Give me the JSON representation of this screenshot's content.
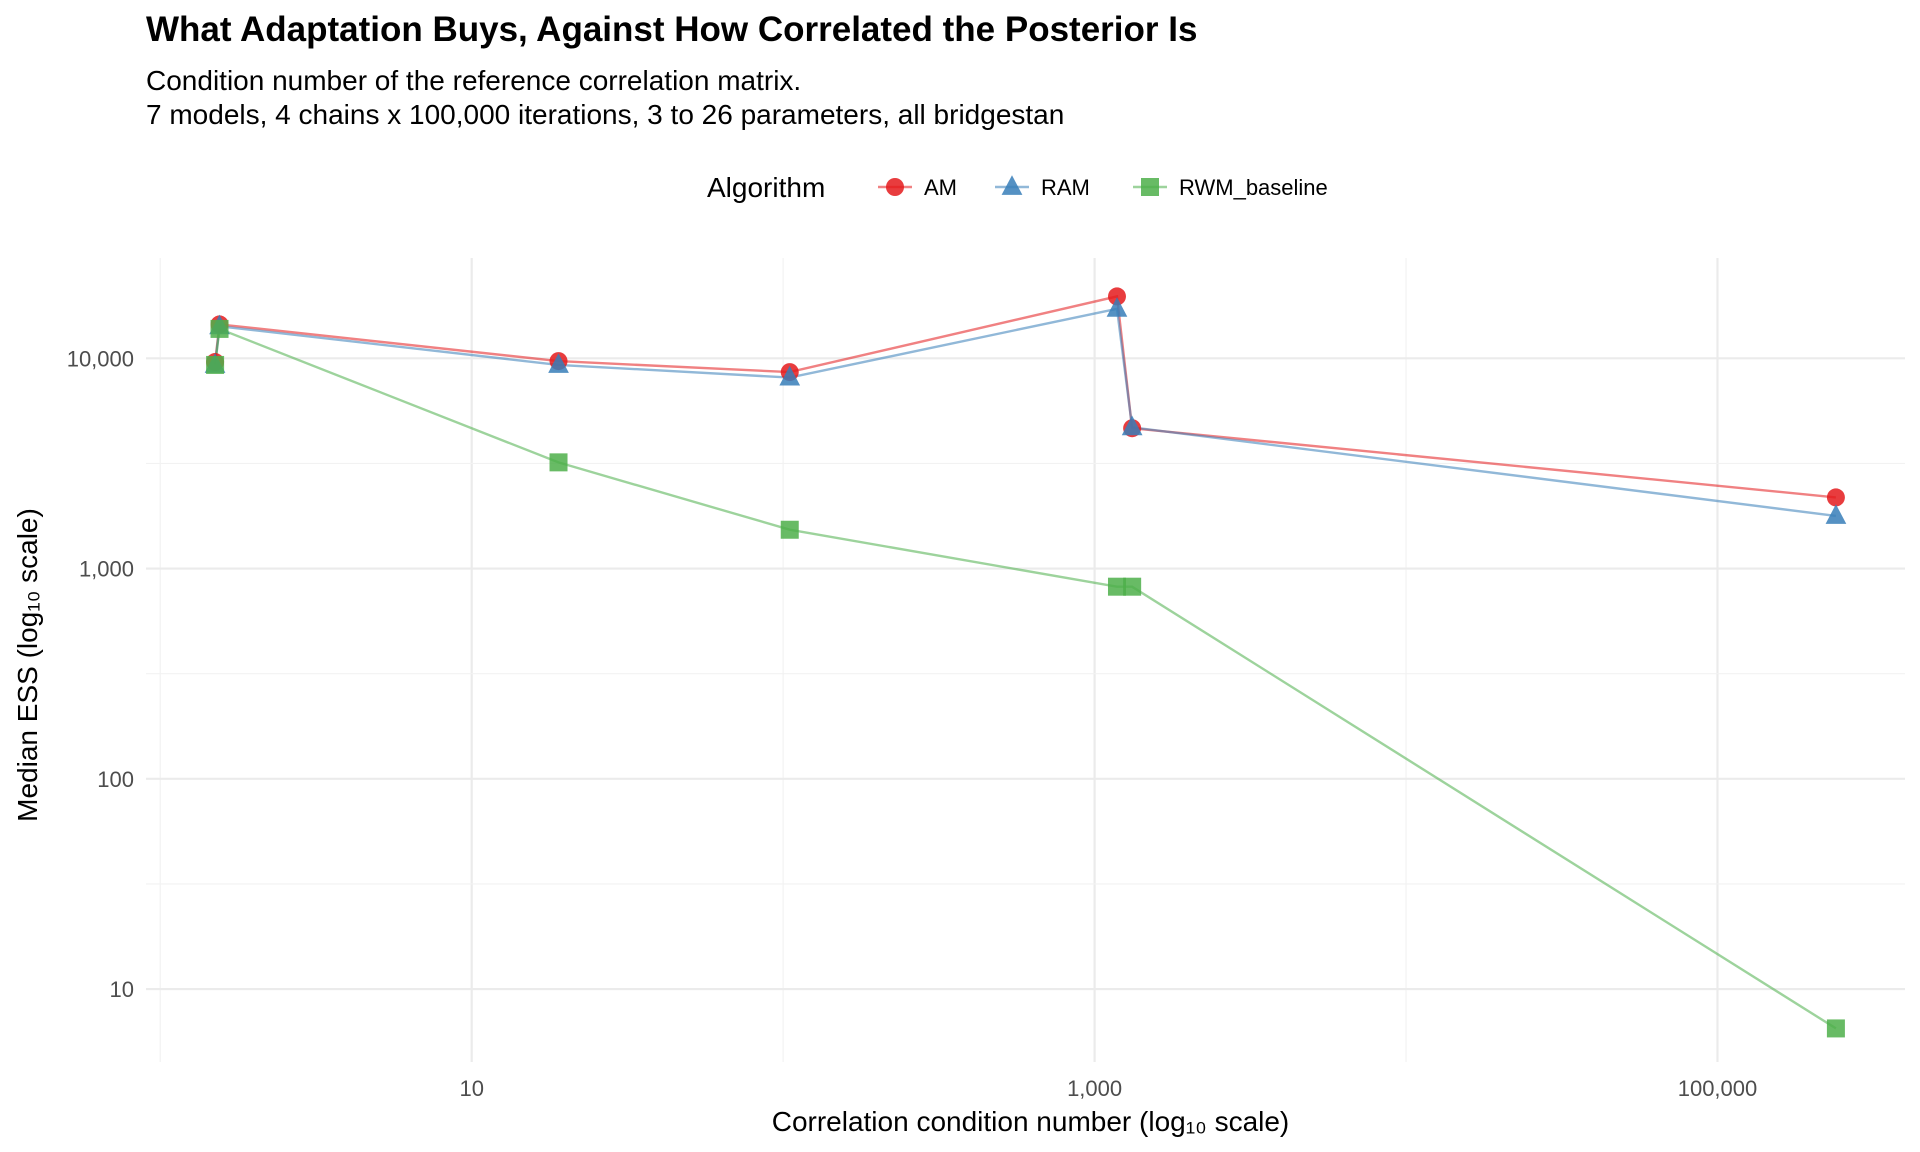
{
  "chart_data": {
    "type": "line",
    "title": "What Adaptation Buys, Against How Correlated the Posterior Is",
    "subtitle_lines": [
      "Condition number of the reference correlation matrix.",
      "7 models, 4 chains x 100,000 iterations, 3 to 26 parameters, all bridgestan"
    ],
    "xlabel": "Correlation condition number (log₁₀ scale)",
    "ylabel": "Median ESS (log₁₀ scale)",
    "x_scale": "log10",
    "y_scale": "log10",
    "xlim": [
      0.9,
      400000
    ],
    "ylim": [
      4.5,
      30000
    ],
    "x_ticks": [
      {
        "value": 10,
        "label": "10"
      },
      {
        "value": 1000,
        "label": "1,000"
      },
      {
        "value": 100000,
        "label": "100,000"
      }
    ],
    "y_ticks": [
      {
        "value": 10,
        "label": "10"
      },
      {
        "value": 100,
        "label": "100"
      },
      {
        "value": 1000,
        "label": "1,000"
      },
      {
        "value": 10000,
        "label": "10,000"
      }
    ],
    "grid": true,
    "legend": {
      "title": "Algorithm",
      "position": "top"
    },
    "series": [
      {
        "name": "AM",
        "color": "#E41A1C",
        "marker": "circle",
        "points": [
          [
            1.5,
            9600
          ],
          [
            1.55,
            14500
          ],
          [
            19,
            9700
          ],
          [
            105,
            8600
          ],
          [
            1180,
            19700
          ],
          [
            1320,
            4650
          ],
          [
            240000,
            2180
          ]
        ]
      },
      {
        "name": "RAM",
        "color": "#377EB8",
        "marker": "triangle",
        "points": [
          [
            1.5,
            9300
          ],
          [
            1.55,
            14200
          ],
          [
            19,
            9300
          ],
          [
            105,
            8100
          ],
          [
            1180,
            17200
          ],
          [
            1320,
            4700
          ],
          [
            240000,
            1780
          ]
        ]
      },
      {
        "name": "RWM_baseline",
        "color": "#4DAF4A",
        "marker": "square",
        "points": [
          [
            1.5,
            9300
          ],
          [
            1.55,
            13800
          ],
          [
            19,
            3200
          ],
          [
            105,
            1530
          ],
          [
            1180,
            820
          ],
          [
            1320,
            820
          ],
          [
            240000,
            6.5
          ]
        ]
      }
    ]
  }
}
